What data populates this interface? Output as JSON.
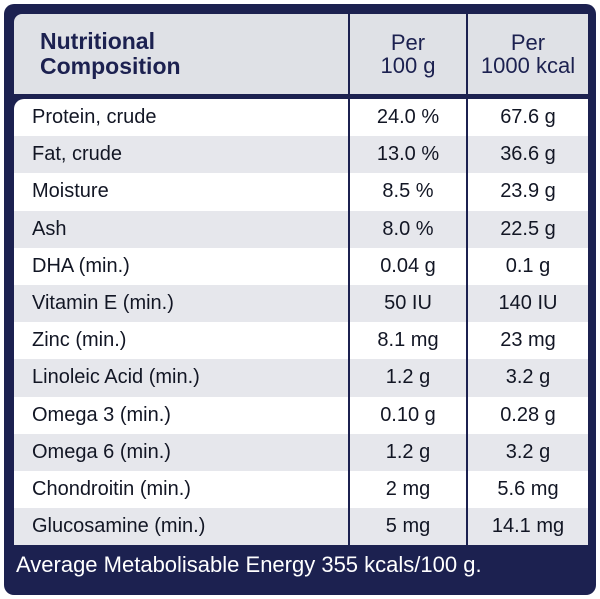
{
  "header": {
    "col1_line1": "Nutritional",
    "col1_line2": "Composition",
    "col2_line1": "Per",
    "col2_line2": "100 g",
    "col3_line1": "Per",
    "col3_line2": "1000 kcal"
  },
  "rows": [
    {
      "name": "Protein, crude",
      "per100g": "24.0 %",
      "per1000kcal": "67.6 g"
    },
    {
      "name": "Fat, crude",
      "per100g": "13.0 %",
      "per1000kcal": "36.6 g"
    },
    {
      "name": "Moisture",
      "per100g": "8.5 %",
      "per1000kcal": "23.9 g"
    },
    {
      "name": "Ash",
      "per100g": "8.0 %",
      "per1000kcal": "22.5 g"
    },
    {
      "name": "DHA (min.)",
      "per100g": "0.04 g",
      "per1000kcal": "0.1 g"
    },
    {
      "name": "Vitamin E (min.)",
      "per100g": "50 IU",
      "per1000kcal": "140 IU"
    },
    {
      "name": "Zinc (min.)",
      "per100g": "8.1 mg",
      "per1000kcal": "23 mg"
    },
    {
      "name": "Linoleic Acid (min.)",
      "per100g": "1.2 g",
      "per1000kcal": "3.2 g"
    },
    {
      "name": "Omega 3 (min.)",
      "per100g": "0.10 g",
      "per1000kcal": "0.28 g"
    },
    {
      "name": "Omega 6 (min.)",
      "per100g": "1.2 g",
      "per1000kcal": "3.2 g"
    },
    {
      "name": "Chondroitin (min.)",
      "per100g": "2 mg",
      "per1000kcal": "5.6 mg"
    },
    {
      "name": "Glucosamine (min.)",
      "per100g": "5 mg",
      "per1000kcal": "14.1 mg"
    }
  ],
  "footer": "Average Metabolisable Energy 355 kcals/100 g.",
  "colors": {
    "navy": "#1c2150",
    "header_bg": "#dfe1e6",
    "row_alt": "#e6e7ec",
    "row": "#ffffff"
  }
}
